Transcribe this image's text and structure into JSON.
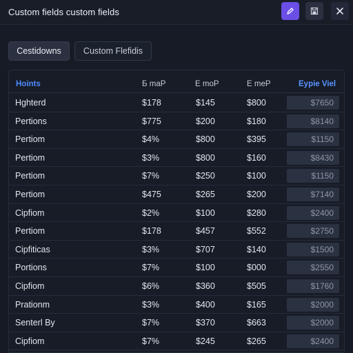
{
  "window": {
    "title": "Custom fields custom fields"
  },
  "tabs": [
    {
      "label": "Cestidowns"
    },
    {
      "label": "Custom Flefidis"
    }
  ],
  "table": {
    "headers": [
      "Hoints",
      "Б maP",
      "Е moP",
      "Е meP",
      "Eypie Viel"
    ],
    "rows": [
      [
        "Hghterd",
        "$178",
        "$145",
        "$800",
        "$7650"
      ],
      [
        "Pertions",
        "$775",
        "$200",
        "$180",
        "$8140"
      ],
      [
        "Pertiom",
        "$4%",
        "$800",
        "$395",
        "$1150"
      ],
      [
        "Pertiom",
        "$3%",
        "$800",
        "$160",
        "$8430"
      ],
      [
        "Pertiom",
        "$7%",
        "$250",
        "$100",
        "$1150"
      ],
      [
        "Pertiom",
        "$475",
        "$265",
        "$200",
        "$7140"
      ],
      [
        "Cipfiom",
        "$2%",
        "$100",
        "$280",
        "$2400"
      ],
      [
        "Pertiom",
        "$178",
        "$457",
        "$552",
        "$2750"
      ],
      [
        "Cipfiticas",
        "$3%",
        "$707",
        "$140",
        "$1500"
      ],
      [
        "Portions",
        "$7%",
        "$100",
        "$000",
        "$2550"
      ],
      [
        "Cipfiom",
        "$6%",
        "$360",
        "$505",
        "$1760"
      ],
      [
        "Prationm",
        "$3%",
        "$400",
        "$165",
        "$2000"
      ],
      [
        "Senterl By",
        "$7%",
        "$370",
        "$663",
        "$2000"
      ],
      [
        "Cipfiom",
        "$7%",
        "$245",
        "$265",
        "$2400"
      ]
    ]
  },
  "colors": {
    "accent_purple": "#6a4ee6",
    "header_blue": "#4f8bff",
    "background": "#151a24"
  },
  "icons": {
    "edit": "pencil-icon",
    "save": "save-icon",
    "close": "close-icon"
  }
}
